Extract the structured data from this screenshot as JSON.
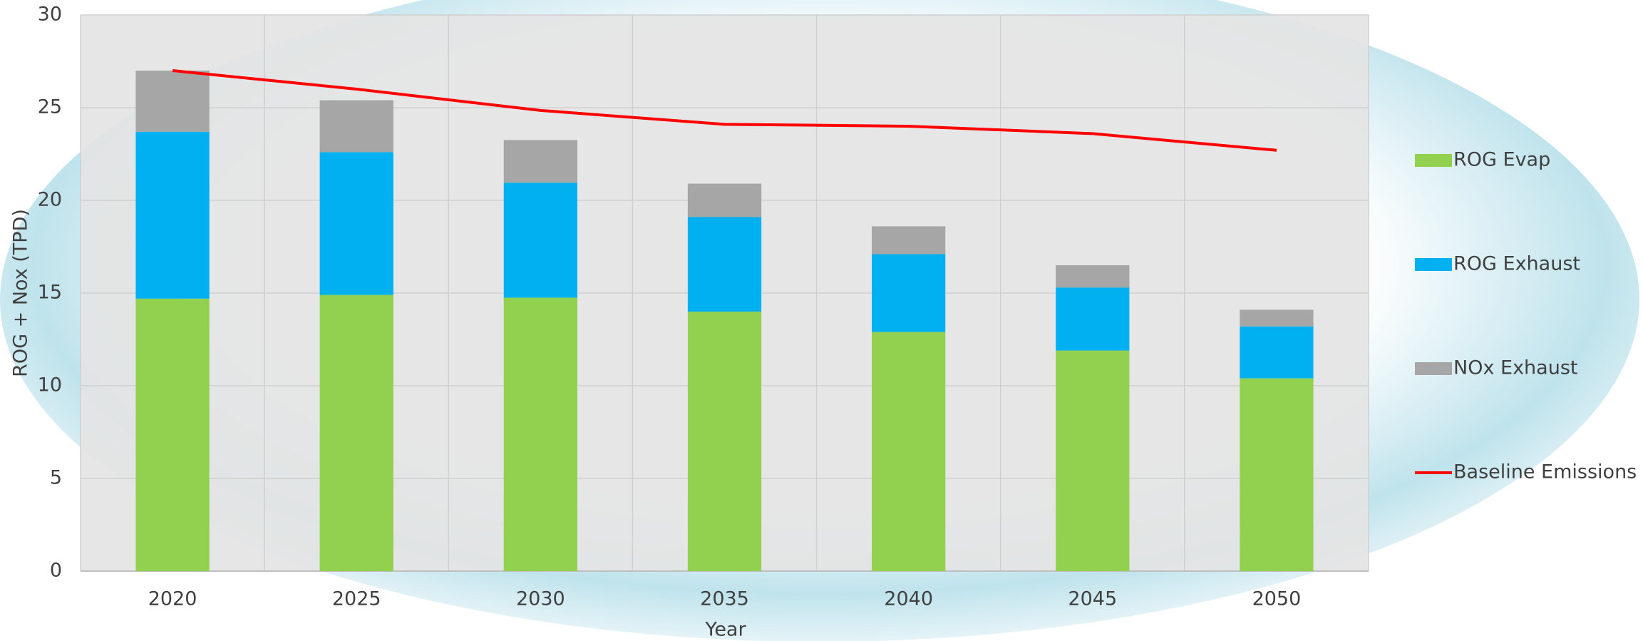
{
  "chart_data": {
    "type": "bar",
    "stacked": true,
    "x_label": "Year",
    "y_label": "ROG + Nox (TPD)",
    "categories": [
      "2020",
      "2025",
      "2030",
      "2035",
      "2040",
      "2045",
      "2050"
    ],
    "series": [
      {
        "name": "ROG Evap",
        "color": "#92d050",
        "type": "bar",
        "values": [
          14.7,
          14.9,
          14.75,
          14.0,
          12.9,
          11.9,
          10.4
        ]
      },
      {
        "name": "ROG Exhaust",
        "color": "#00b0f0",
        "type": "bar",
        "values": [
          9.0,
          7.7,
          6.2,
          5.1,
          4.2,
          3.4,
          2.8
        ]
      },
      {
        "name": "NOx Exhaust",
        "color": "#a6a6a6",
        "type": "bar",
        "values": [
          3.3,
          2.8,
          2.3,
          1.8,
          1.5,
          1.2,
          0.9
        ]
      },
      {
        "name": "Baseline Emissions",
        "color": "#ff0000",
        "type": "line",
        "values": [
          27.0,
          26.0,
          24.85,
          24.1,
          24.0,
          23.6,
          22.7
        ]
      }
    ],
    "ylim": [
      0,
      30
    ],
    "yticks": [
      0,
      5,
      10,
      15,
      20,
      25,
      30
    ],
    "grid": true,
    "legend": "right"
  }
}
